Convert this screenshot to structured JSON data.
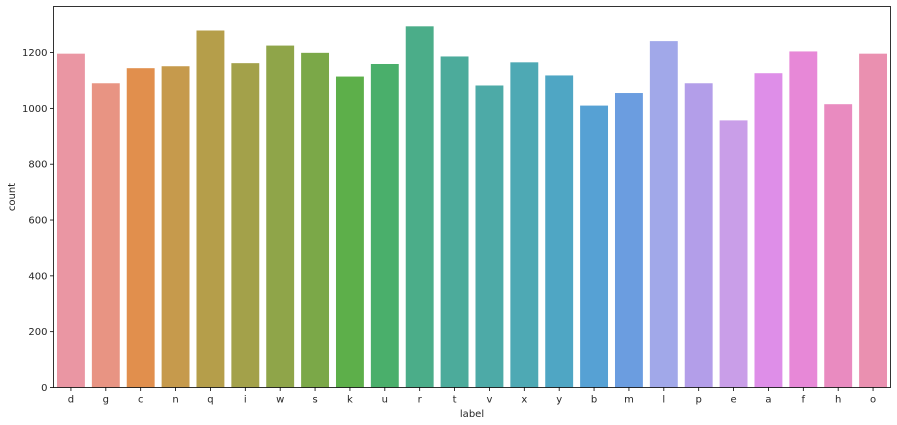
{
  "chart_data": {
    "type": "bar",
    "categories": [
      "d",
      "g",
      "c",
      "n",
      "q",
      "i",
      "w",
      "s",
      "k",
      "u",
      "r",
      "t",
      "v",
      "x",
      "y",
      "b",
      "m",
      "l",
      "p",
      "e",
      "a",
      "f",
      "h",
      "o"
    ],
    "values": [
      1196,
      1090,
      1144,
      1151,
      1279,
      1162,
      1225,
      1199,
      1114,
      1159,
      1294,
      1186,
      1082,
      1165,
      1118,
      1010,
      1055,
      1241,
      1090,
      957,
      1126,
      1204,
      1015,
      1196
    ],
    "colors": [
      "#ea96a3",
      "#e89483",
      "#e18f4d",
      "#c69a4c",
      "#b59e4a",
      "#a3a14a",
      "#8fa549",
      "#7ba848",
      "#5daf4a",
      "#4aaf6b",
      "#4bad89",
      "#4cab9b",
      "#4daaa7",
      "#4ea9b4",
      "#4fa6c4",
      "#56a1d4",
      "#6b9de0",
      "#a1a8e9",
      "#b39ee9",
      "#c99ee8",
      "#de8ee8",
      "#e788d7",
      "#e98bc0",
      "#ea90b0"
    ],
    "xlabel": "label",
    "ylabel": "count",
    "ylim": [
      0,
      1365
    ],
    "yticks": [
      0,
      200,
      400,
      600,
      800,
      1000,
      1200
    ],
    "grid": false
  }
}
